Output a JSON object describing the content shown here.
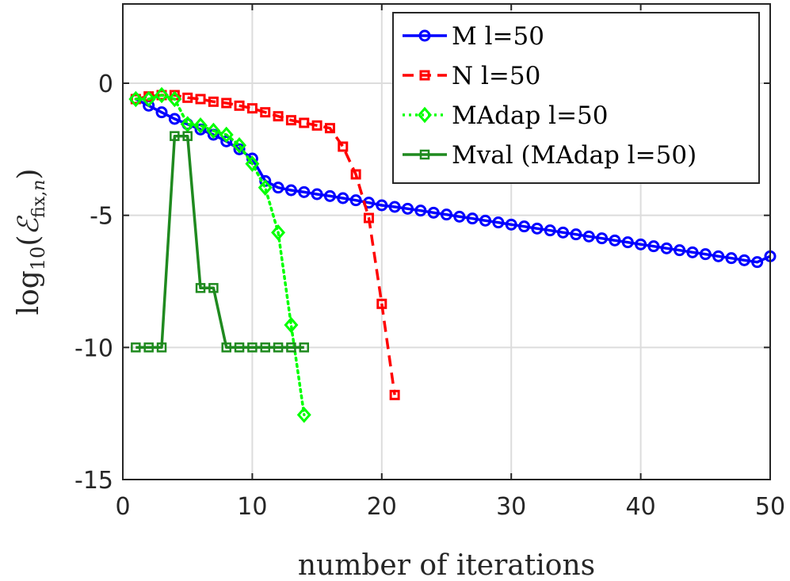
{
  "chart_data": {
    "type": "line",
    "xlabel": "number of iterations",
    "ylabel": {
      "base": "log",
      "subscript": "10",
      "open": "(",
      "symbol": "ℰ",
      "symbol_sub": "fix,",
      "symbol_sub_italic": "n",
      "close": ")"
    },
    "xlim": [
      0,
      50
    ],
    "ylim": [
      -15,
      3
    ],
    "x_ticks": [
      0,
      10,
      20,
      30,
      40,
      50
    ],
    "y_ticks": [
      0,
      -5,
      -10,
      -15
    ],
    "x_tick_labels": [
      "0",
      "10",
      "20",
      "30",
      "40",
      "50"
    ],
    "y_tick_labels": [
      "0",
      "-5",
      "-10",
      "-15"
    ],
    "grid": true,
    "legend_position": "top-right",
    "series": [
      {
        "name": "M l=50",
        "color": "#0000ff",
        "dash": "solid",
        "marker": "circle",
        "x": [
          1,
          2,
          3,
          4,
          5,
          6,
          7,
          8,
          9,
          10,
          11,
          12,
          13,
          14,
          15,
          16,
          17,
          18,
          19,
          20,
          21,
          22,
          23,
          24,
          25,
          26,
          27,
          28,
          29,
          30,
          31,
          32,
          33,
          34,
          35,
          36,
          37,
          38,
          39,
          40,
          41,
          42,
          43,
          44,
          45,
          46,
          47,
          48,
          49,
          50
        ],
        "y": [
          -0.6,
          -0.85,
          -1.1,
          -1.35,
          -1.55,
          -1.75,
          -1.95,
          -2.2,
          -2.5,
          -2.85,
          -3.7,
          -3.95,
          -4.05,
          -4.12,
          -4.2,
          -4.27,
          -4.35,
          -4.43,
          -4.52,
          -4.62,
          -4.68,
          -4.75,
          -4.82,
          -4.9,
          -4.97,
          -5.05,
          -5.12,
          -5.2,
          -5.27,
          -5.35,
          -5.42,
          -5.5,
          -5.57,
          -5.65,
          -5.72,
          -5.8,
          -5.87,
          -5.95,
          -6.02,
          -6.1,
          -6.17,
          -6.25,
          -6.32,
          -6.4,
          -6.47,
          -6.55,
          -6.62,
          -6.7,
          -6.77,
          -6.55
        ]
      },
      {
        "name": "N l=50",
        "color": "#ff0000",
        "dash": "dashed",
        "marker": "square",
        "x": [
          1,
          2,
          3,
          4,
          5,
          6,
          7,
          8,
          9,
          10,
          11,
          12,
          13,
          14,
          15,
          16,
          17,
          18,
          19,
          20,
          21
        ],
        "y": [
          -0.6,
          -0.5,
          -0.45,
          -0.45,
          -0.55,
          -0.6,
          -0.7,
          -0.75,
          -0.85,
          -0.95,
          -1.1,
          -1.25,
          -1.4,
          -1.5,
          -1.6,
          -1.7,
          -2.4,
          -3.45,
          -5.1,
          -8.35,
          -11.8
        ]
      },
      {
        "name": "MAdap l=50",
        "color": "#00ff00",
        "dash": "dotted",
        "marker": "diamond",
        "x": [
          1,
          2,
          3,
          4,
          5,
          6,
          7,
          8,
          9,
          10,
          11,
          12,
          13,
          14
        ],
        "y": [
          -0.6,
          -0.6,
          -0.45,
          -0.6,
          -1.55,
          -1.6,
          -1.8,
          -1.95,
          -2.35,
          -3.05,
          -3.95,
          -5.65,
          -9.15,
          -12.55
        ]
      },
      {
        "name": "Mval (MAdap l=50)",
        "color": "#1f8a1f",
        "dash": "solid",
        "marker": "square-small",
        "x": [
          1,
          2,
          3,
          4,
          5,
          6,
          7,
          8,
          9,
          10,
          11,
          12,
          13,
          14
        ],
        "y": [
          -10,
          -10,
          -10,
          -2,
          -2,
          -7.75,
          -7.75,
          -10,
          -10,
          -10,
          -10,
          -10,
          -10,
          -10
        ]
      }
    ]
  }
}
